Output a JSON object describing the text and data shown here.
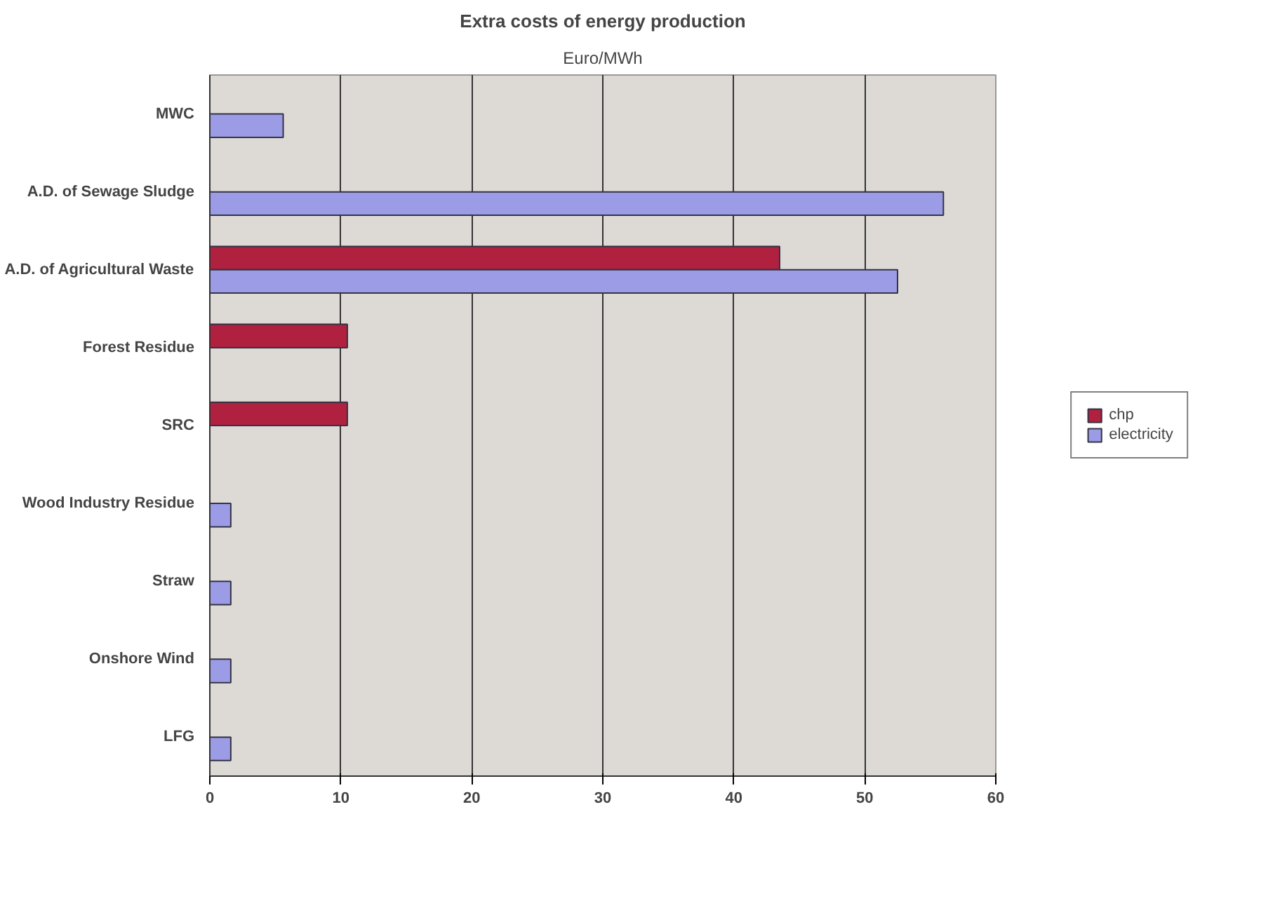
{
  "chart_data": {
    "type": "bar",
    "orientation": "horizontal",
    "title": "Extra costs of energy production",
    "subtitle": "Euro/MWh",
    "categories": [
      "MWC",
      "A.D. of Sewage Sludge",
      "A.D. of Agricultural Waste",
      "Forest Residue",
      "SRC",
      "Wood Industry Residue",
      "Straw",
      "Onshore Wind",
      "LFG"
    ],
    "series": [
      {
        "name": "chp",
        "color": "#b0203f",
        "values": [
          null,
          null,
          43.5,
          10.5,
          10.5,
          null,
          null,
          null,
          null
        ]
      },
      {
        "name": "electricity",
        "color": "#9c9ce6",
        "values": [
          5.6,
          56,
          52.5,
          null,
          null,
          1.6,
          1.6,
          1.6,
          1.6
        ]
      }
    ],
    "xlim": [
      0,
      60
    ],
    "xticks": [
      0,
      10,
      20,
      30,
      40,
      50,
      60
    ],
    "grid": "x",
    "legend": "right"
  }
}
